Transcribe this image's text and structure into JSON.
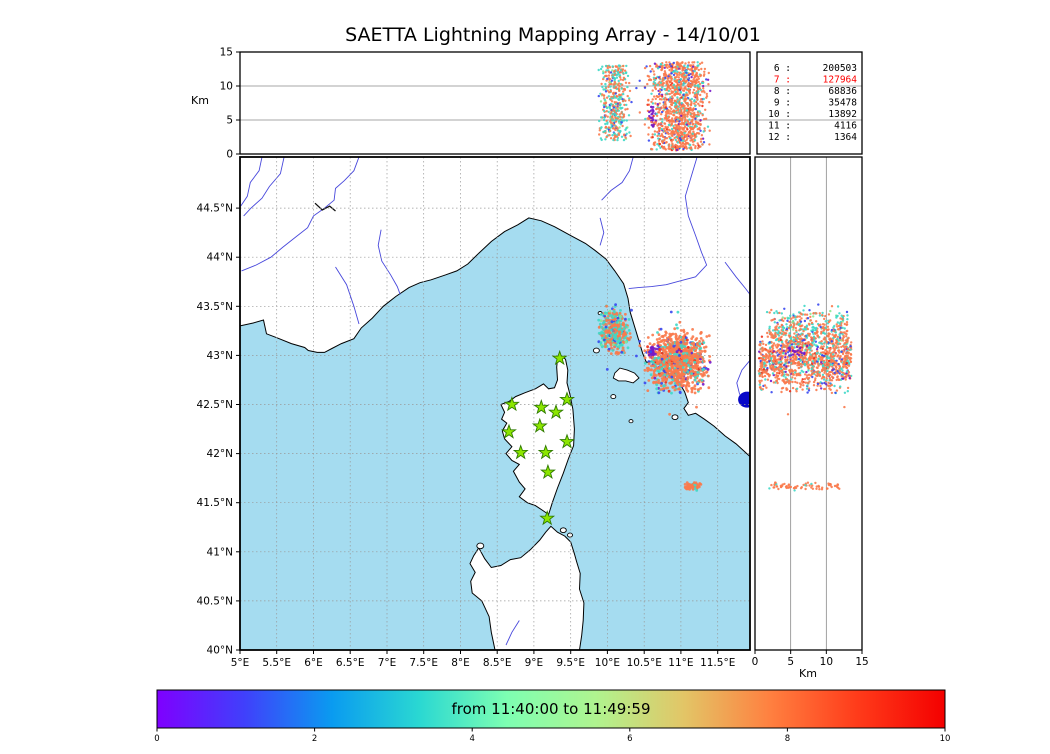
{
  "title": "SAETTA Lightning Mapping Array - 14/10/01",
  "palette": {
    "sea": "#a5dcf0",
    "land": "#ffffff",
    "coast": "#000000",
    "river": "#4848dc",
    "lake": "#0808c8",
    "grid": "#999999",
    "panel_grid": "#8a8a8a",
    "star_fill": "#8ce600",
    "star_stroke": "#2f7a00",
    "highlight": "#ff0000",
    "orange": "#f97a4d",
    "cyan": "#3fd8c8",
    "green": "#8de88f",
    "blue": "#3848f0",
    "purple": "#7718c8",
    "red": "#ef2c16"
  },
  "top_panel": {
    "axis_label": "Km",
    "ticks": [
      "0",
      "5",
      "10",
      "15"
    ]
  },
  "right_panel": {
    "axis_label": "Km",
    "ticks": [
      "0",
      "5",
      "10",
      "15"
    ]
  },
  "map": {
    "lat_ticks": [
      {
        "v": 44.5,
        "label": "44.5°N"
      },
      {
        "v": 44.0,
        "label": "44°N"
      },
      {
        "v": 43.5,
        "label": "43.5°N"
      },
      {
        "v": 43.0,
        "label": "43°N"
      },
      {
        "v": 42.5,
        "label": "42.5°N"
      },
      {
        "v": 42.0,
        "label": "42°N"
      },
      {
        "v": 41.5,
        "label": "41.5°N"
      },
      {
        "v": 41.0,
        "label": "41°N"
      },
      {
        "v": 40.5,
        "label": "40.5°N"
      },
      {
        "v": 40.0,
        "label": "40°N"
      }
    ],
    "lon_ticks": [
      {
        "v": 5.0,
        "label": "5°E"
      },
      {
        "v": 5.5,
        "label": "5.5°E"
      },
      {
        "v": 6.0,
        "label": "6°E"
      },
      {
        "v": 6.5,
        "label": "6.5°E"
      },
      {
        "v": 7.0,
        "label": "7°E"
      },
      {
        "v": 7.5,
        "label": "7.5°E"
      },
      {
        "v": 8.0,
        "label": "8°E"
      },
      {
        "v": 8.5,
        "label": "8.5°E"
      },
      {
        "v": 9.0,
        "label": "9°E"
      },
      {
        "v": 9.5,
        "label": "9.5°E"
      },
      {
        "v": 10.0,
        "label": "10°E"
      },
      {
        "v": 10.5,
        "label": "10.5°E"
      },
      {
        "v": 11.0,
        "label": "11°E"
      },
      {
        "v": 11.5,
        "label": "11.5°E"
      }
    ]
  },
  "stations": [
    [
      9.35,
      42.97
    ],
    [
      9.45,
      42.55
    ],
    [
      8.7,
      42.5
    ],
    [
      9.1,
      42.47
    ],
    [
      9.3,
      42.42
    ],
    [
      9.08,
      42.28
    ],
    [
      9.45,
      42.12
    ],
    [
      8.82,
      42.01
    ],
    [
      9.16,
      42.01
    ],
    [
      9.19,
      41.81
    ],
    [
      9.18,
      41.34
    ],
    [
      8.66,
      42.22
    ]
  ],
  "chart_data": {
    "type": "scatter",
    "title": "SAETTA Lightning Mapping Array - 14/10/01",
    "time_window": {
      "label": "from 11:40:00 to 11:49:59",
      "start": "11:40:00",
      "end": "11:49:59"
    },
    "colorbar": {
      "ticks": [
        "0",
        "2",
        "4",
        "6",
        "8",
        "10"
      ],
      "range": [
        0,
        10
      ],
      "gradient": [
        "#7f00ff",
        "#4040fb",
        "#0a9bf0",
        "#2ad8d2",
        "#7dffb2",
        "#aff48f",
        "#e2c667",
        "#ff8040",
        "#ff3b1a",
        "#f40000"
      ]
    },
    "source_counts": [
      {
        "bin": "6",
        "count": 200503,
        "highlight": false
      },
      {
        "bin": "7",
        "count": 127964,
        "highlight": true
      },
      {
        "bin": "8",
        "count": 68836,
        "highlight": false
      },
      {
        "bin": "9",
        "count": 35478,
        "highlight": false
      },
      {
        "bin": "10",
        "count": 13892,
        "highlight": false
      },
      {
        "bin": "11",
        "count": 4116,
        "highlight": false
      },
      {
        "bin": "12",
        "count": 1364,
        "highlight": false
      }
    ],
    "axes": {
      "lon_range": [
        5.0,
        11.94
      ],
      "lat_range": [
        40.0,
        45.02
      ],
      "alt_range_km": [
        0,
        15
      ]
    },
    "clusters": [
      {
        "name": "west-cell",
        "lon": [
          9.87,
          10.33
        ],
        "lat": [
          43.0,
          43.52
        ],
        "alt": [
          2,
          13
        ],
        "n": 420,
        "colors": {
          "orange": 0.5,
          "cyan": 0.4,
          "green": 0.05,
          "blue": 0.05
        }
      },
      {
        "name": "east-cell",
        "lon": [
          10.5,
          11.42
        ],
        "lat": [
          42.6,
          43.28
        ],
        "alt": [
          0.5,
          13.5
        ],
        "n": 1100,
        "colors": {
          "orange": 0.72,
          "cyan": 0.17,
          "blue": 0.05,
          "red": 0.03,
          "purple": 0.03
        }
      },
      {
        "name": "purple-spot",
        "lon": [
          10.55,
          10.67
        ],
        "lat": [
          42.97,
          43.1
        ],
        "alt": [
          4,
          7
        ],
        "n": 25,
        "colors": {
          "purple": 1.0
        }
      },
      {
        "name": "south-streak",
        "lon": [
          11.05,
          11.3
        ],
        "lat": [
          41.62,
          41.72
        ],
        "alt": [
          2,
          12
        ],
        "n": 70,
        "colors": {
          "orange": 0.85,
          "cyan": 0.15
        }
      },
      {
        "name": "outliers",
        "lon": [
          9.8,
          11.5
        ],
        "lat": [
          42.25,
          43.6
        ],
        "alt": [
          1,
          13
        ],
        "n": 35,
        "colors": {
          "cyan": 0.45,
          "blue": 0.3,
          "orange": 0.25
        }
      }
    ]
  }
}
